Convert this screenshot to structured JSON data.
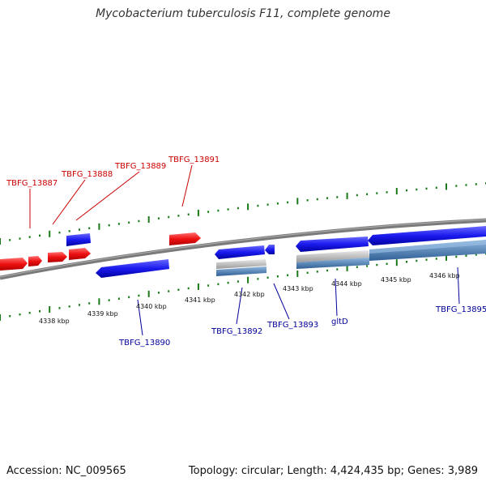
{
  "title": "Mycobacterium tuberculosis F11, complete genome",
  "accession": "Accession: NC_009565",
  "summary": "Topology: circular; Length: 4,424,435 bp; Genes: 3,989",
  "colors": {
    "forward_gene": "#ee1111",
    "reverse_gene": "#1a1aee",
    "backbone": "#808080",
    "tick": "#1a7a1a",
    "forward_label": "#cc0000",
    "reverse_label": "#000099",
    "gray_feature": "#b4b4b4",
    "steel_feature": "#4a7fb5"
  },
  "kbp_labels": [
    "4338 kbp",
    "4339 kbp",
    "4340 kbp",
    "4341 kbp",
    "4342 kbp",
    "4343 kbp",
    "4344 kbp",
    "4345 kbp",
    "4346 kbp"
  ],
  "forward_genes": [
    "TBFG_13887",
    "TBFG_13888",
    "TBFG_13889",
    "TBFG_13891"
  ],
  "reverse_genes": [
    "TBFG_13890",
    "TBFG_13892",
    "TBFG_13893",
    "gltD",
    "TBFG_13895"
  ]
}
